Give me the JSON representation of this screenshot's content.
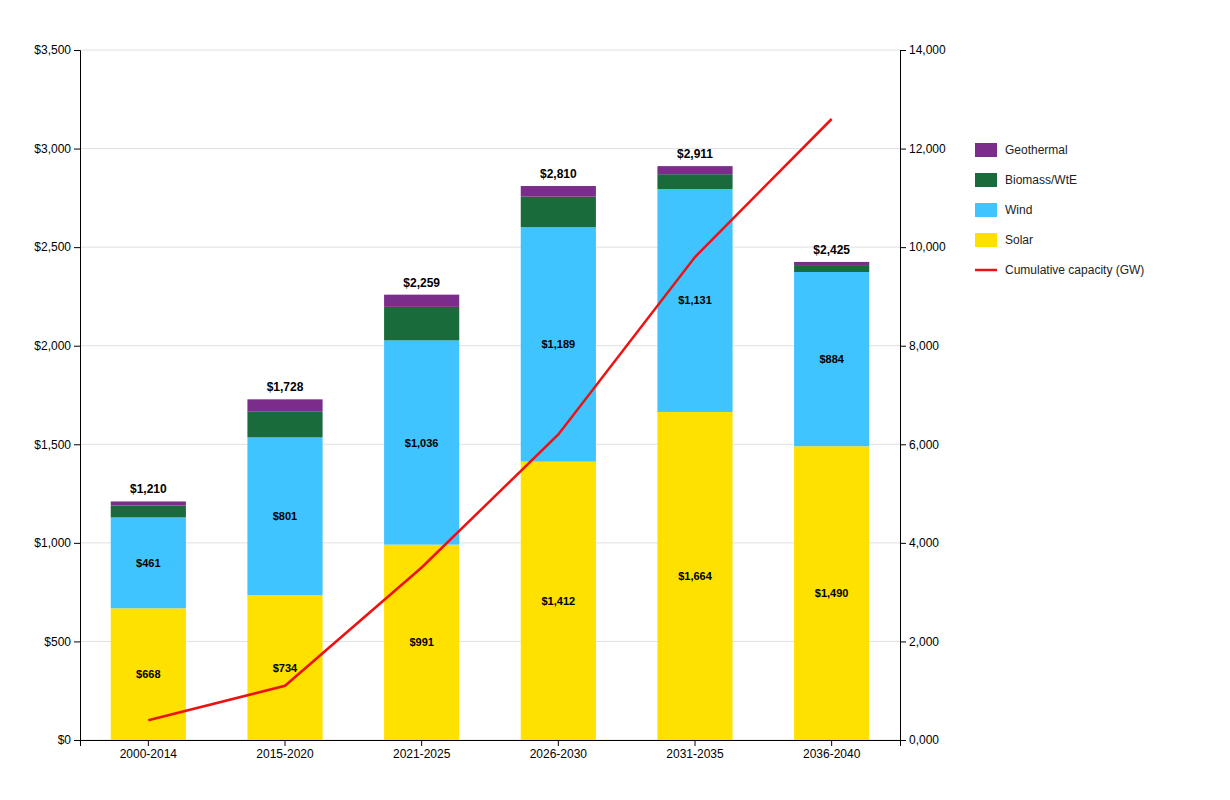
{
  "chart_data": {
    "type": "bar",
    "stacked": true,
    "grid": true,
    "legend": "right",
    "categories": [
      "2000-2014",
      "2015-2020",
      "2021-2025",
      "2026-2030",
      "2031-2035",
      "2036-2040"
    ],
    "series": [
      {
        "name": "Solar",
        "color": "#FFE100",
        "data_labels": true,
        "values": [
          668,
          734,
          991,
          1412,
          1664,
          1490
        ],
        "value_labels": [
          "$668",
          "$734",
          "$991",
          "$1,412",
          "$1,664",
          "$1,490"
        ]
      },
      {
        "name": "Wind",
        "color": "#40C4FF",
        "data_labels": true,
        "values": [
          461,
          801,
          1036,
          1189,
          1131,
          884
        ],
        "value_labels": [
          "$461",
          "$801",
          "$1,036",
          "$1,189",
          "$1,131",
          "$884"
        ]
      },
      {
        "name": "Biomass/WtE",
        "color": "#1A6B3C",
        "values": [
          60,
          130,
          170,
          155,
          75,
          35
        ]
      },
      {
        "name": "Geothermal",
        "color": "#7B2D8B",
        "values": [
          21,
          63,
          62,
          54,
          41,
          16
        ]
      },
      {
        "name": "Cumulative capacity (GW)",
        "type": "line",
        "axis": "y2",
        "color": "#EE1111",
        "values": [
          400,
          1100,
          3500,
          6200,
          9800,
          12600
        ]
      }
    ],
    "totals": [
      1210,
      1728,
      2259,
      2810,
      2911,
      2425
    ],
    "total_labels": [
      "$1,210",
      "$1,728",
      "$2,259",
      "$2,810",
      "$2,911",
      "$2,425"
    ],
    "ylim": [
      0,
      3500
    ],
    "yticks": [
      {
        "value": 0,
        "label": "$0"
      },
      {
        "value": 500,
        "label": "$500"
      },
      {
        "value": 1000,
        "label": "$1,000"
      },
      {
        "value": 1500,
        "label": "$1,500"
      },
      {
        "value": 2000,
        "label": "$2,000"
      },
      {
        "value": 2500,
        "label": "$2,500"
      },
      {
        "value": 3000,
        "label": "$3,000"
      },
      {
        "value": 3500,
        "label": "$3,500"
      }
    ],
    "y2lim": [
      0,
      14000
    ],
    "y2ticks": [
      {
        "value": 0,
        "label": "0,000"
      },
      {
        "value": 2000,
        "label": "2,000"
      },
      {
        "value": 4000,
        "label": "4,000"
      },
      {
        "value": 6000,
        "label": "6,000"
      },
      {
        "value": 8000,
        "label": "8,000"
      },
      {
        "value": 10000,
        "label": "10,000"
      },
      {
        "value": 12000,
        "label": "12,000"
      },
      {
        "value": 14000,
        "label": "14,000"
      }
    ]
  }
}
